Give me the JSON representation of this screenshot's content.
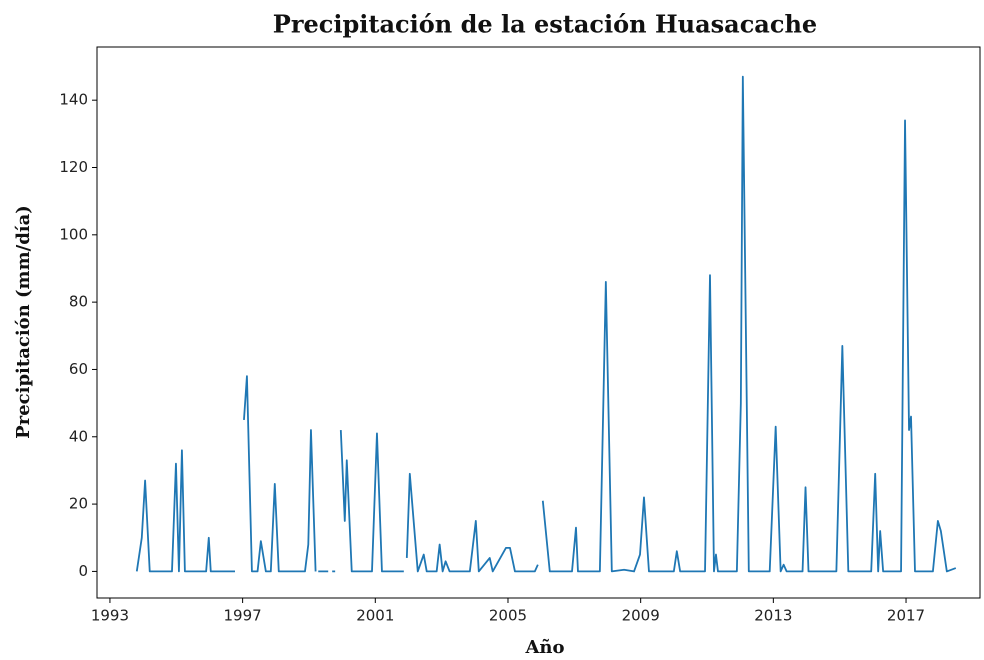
{
  "chart_data": {
    "type": "line",
    "title": "Precipitación de la estación Huasacache",
    "xlabel": "Año",
    "ylabel": "Precipitación (mm/día)",
    "xlim": [
      1992.61,
      2019.23
    ],
    "ylim": [
      -7.9,
      155.8
    ],
    "xticks": [
      1993,
      1997,
      2001,
      2005,
      2009,
      2013,
      2017
    ],
    "yticks": [
      0,
      20,
      40,
      60,
      80,
      100,
      120,
      140
    ],
    "grid": false,
    "series": [
      {
        "name": "Precipitación",
        "color": "#1f77b4",
        "x": [
          1993.81,
          1993.96,
          1994.06,
          1994.2,
          1994.87,
          1994.99,
          1995.08,
          1995.17,
          1995.26,
          1995.9,
          1995.98,
          1996.04,
          1996.77,
          1996.9,
          1997.04,
          1997.13,
          1997.28,
          1997.45,
          1997.55,
          1997.7,
          1997.85,
          1997.97,
          1998.09,
          1998.88,
          1998.98,
          1999.06,
          1999.2,
          1999.25,
          1999.28,
          1999.58,
          1999.65,
          1999.7,
          1999.79,
          1999.85,
          1999.96,
          2000.08,
          2000.14,
          2000.29,
          2000.9,
          2001.05,
          2001.2,
          2001.86,
          2001.9,
          2001.95,
          2002.04,
          2002.28,
          2002.46,
          2002.55,
          2002.85,
          2002.94,
          2003.03,
          2003.12,
          2003.24,
          2003.85,
          2004.03,
          2004.12,
          2004.45,
          2004.54,
          2004.94,
          2005.06,
          2005.21,
          2005.81,
          2005.9,
          2005.95,
          2006.05,
          2006.26,
          2006.93,
          2007.05,
          2007.11,
          2007.77,
          2007.95,
          2008.13,
          2008.5,
          2008.8,
          2008.98,
          2009.1,
          2009.25,
          2010.0,
          2010.09,
          2010.19,
          2010.94,
          2011.09,
          2011.21,
          2011.27,
          2011.33,
          2011.9,
          2012.02,
          2012.08,
          2012.26,
          2012.89,
          2013.07,
          2013.22,
          2013.31,
          2013.4,
          2013.88,
          2013.97,
          2014.06,
          2014.9,
          2015.08,
          2015.26,
          2015.95,
          2016.07,
          2016.16,
          2016.22,
          2016.31,
          2016.85,
          2016.97,
          2017.09,
          2017.15,
          2017.27,
          2017.81,
          2017.96,
          2018.05,
          2018.23,
          2018.5
        ],
        "values": [
          0,
          10,
          27,
          0,
          0,
          32,
          0,
          36,
          0,
          0,
          10,
          0,
          0,
          null,
          45,
          58,
          0,
          0,
          9,
          0,
          0,
          26,
          0,
          0,
          8,
          42,
          0,
          null,
          0,
          0,
          null,
          0,
          0,
          null,
          42,
          15,
          33,
          0,
          0,
          41,
          0,
          0,
          null,
          4,
          29,
          0,
          5,
          0,
          0,
          8,
          0,
          3,
          0,
          0,
          15,
          0,
          4,
          0,
          7,
          7,
          0,
          0,
          2,
          null,
          21,
          0,
          0,
          13,
          0,
          0,
          86,
          0,
          0.5,
          0,
          5,
          22,
          0,
          0,
          6,
          0,
          0,
          88,
          0,
          5,
          0,
          0,
          50,
          147,
          0,
          0,
          43,
          0,
          2,
          0,
          0,
          25,
          0,
          0,
          67,
          0,
          0,
          29,
          0,
          12,
          0,
          0,
          134,
          42,
          46,
          0,
          0,
          15,
          12,
          0,
          1
        ]
      }
    ]
  }
}
